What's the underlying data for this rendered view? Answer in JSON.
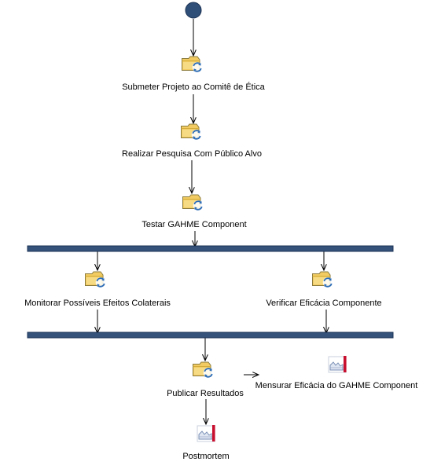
{
  "colors": {
    "initial_node": "#2f4f78",
    "sync_bar": "#34527a",
    "sync_bar_border": "#1d3354",
    "edge": "#000000",
    "task_folder": "#f2cc62",
    "task_arrows": "#2d6db7",
    "artifact_red": "#c8102e",
    "artifact_line": "#7a8fb5"
  },
  "nodes": {
    "start": {
      "icon": "initial-node"
    },
    "task_submeter": {
      "label": "Submeter Projeto ao Comitê de Ética",
      "icon": "task-icon"
    },
    "task_realizar": {
      "label": "Realizar Pesquisa Com Público Alvo",
      "icon": "task-icon"
    },
    "task_testar": {
      "label": "Testar GAHME Component",
      "icon": "task-icon"
    },
    "task_monitorar": {
      "label": "Monitorar Possíveis Efeitos Colaterais",
      "icon": "task-icon"
    },
    "task_verificar": {
      "label": "Verificar Eficácia Componente",
      "icon": "task-icon"
    },
    "task_publicar": {
      "label": "Publicar Resultados",
      "icon": "task-icon"
    },
    "artifact_mensurar": {
      "label": "Mensurar Eficácia do GAHME Component",
      "icon": "artifact-chart-icon"
    },
    "artifact_postmortem": {
      "label": "Postmortem",
      "icon": "artifact-chart-icon"
    }
  },
  "bars": {
    "fork": {
      "kind": "fork"
    },
    "join": {
      "kind": "join"
    }
  }
}
